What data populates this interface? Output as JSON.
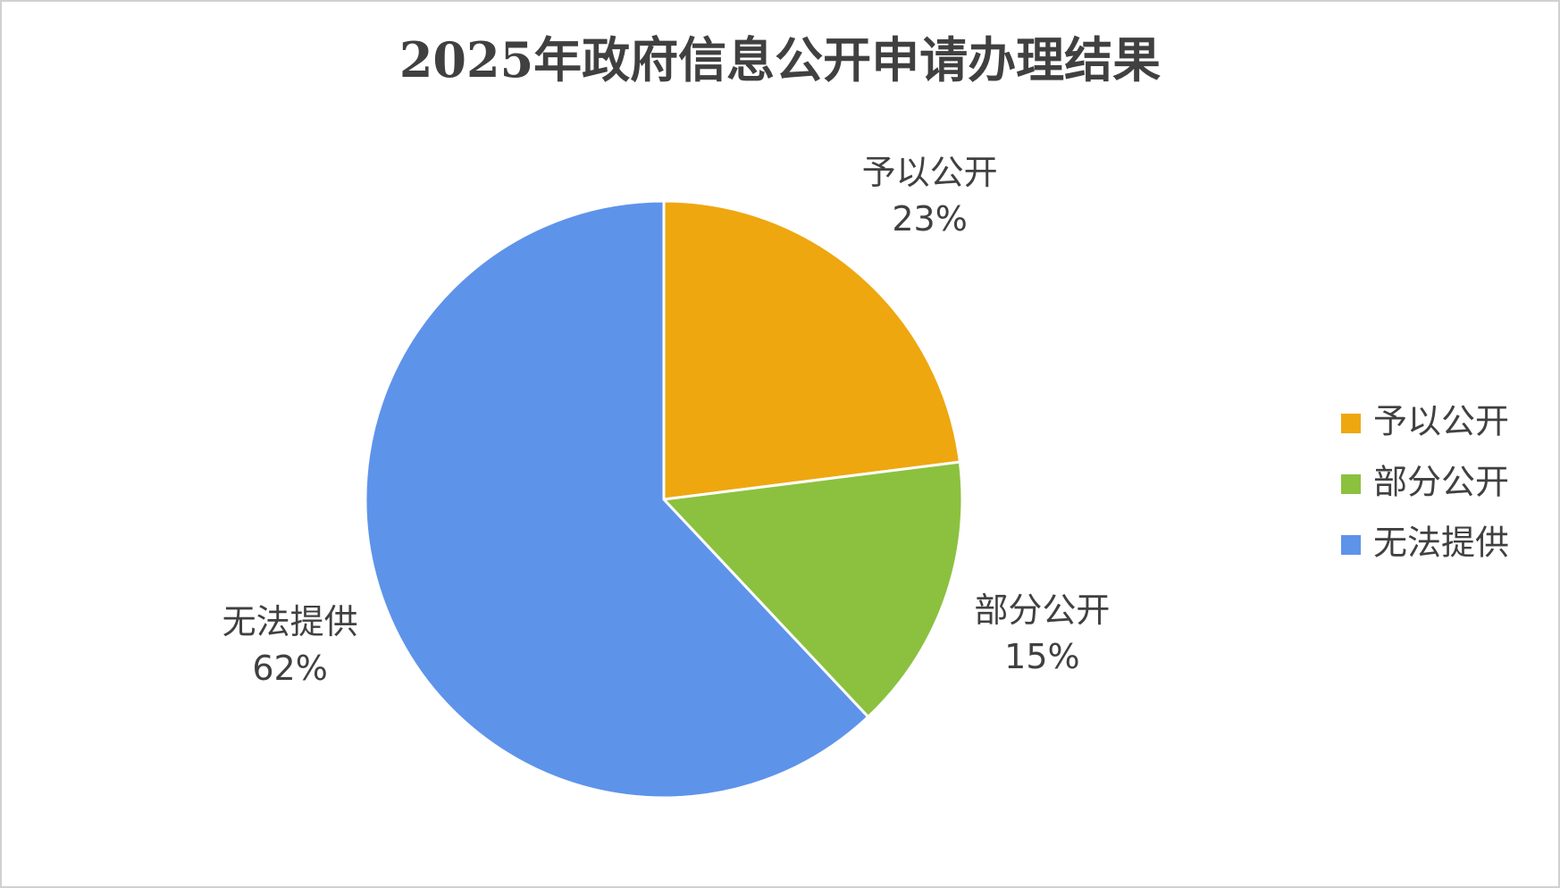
{
  "chart_data": {
    "type": "pie",
    "title": "2025年政府信息公开申请办理结果",
    "categories": [
      "予以公开",
      "部分公开",
      "无法提供"
    ],
    "values": [
      23,
      15,
      62
    ],
    "value_labels": [
      "23%",
      "15%",
      "62%"
    ],
    "colors": [
      "#EEA70F",
      "#8BC13F",
      "#5E93EA"
    ],
    "legend": "right"
  }
}
